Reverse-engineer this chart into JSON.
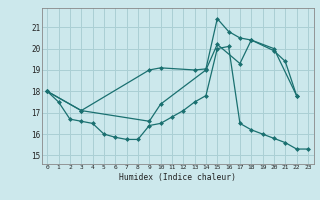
{
  "xlabel": "Humidex (Indice chaleur)",
  "bg_color": "#cce8ec",
  "grid_color": "#aacfd4",
  "line_color": "#1a7070",
  "xlim": [
    -0.5,
    23.5
  ],
  "ylim": [
    14.6,
    21.9
  ],
  "xticks": [
    0,
    1,
    2,
    3,
    4,
    5,
    6,
    7,
    8,
    9,
    10,
    11,
    12,
    13,
    14,
    15,
    16,
    17,
    18,
    19,
    20,
    21,
    22,
    23
  ],
  "yticks": [
    15,
    16,
    17,
    18,
    19,
    20,
    21
  ],
  "line1_x": [
    0,
    1,
    2,
    3,
    4,
    5,
    6,
    7,
    8,
    9,
    10,
    11,
    12,
    13,
    14,
    15,
    16,
    17,
    18,
    19,
    20,
    21,
    22,
    23
  ],
  "line1_y": [
    18.0,
    17.5,
    16.7,
    16.6,
    16.5,
    16.0,
    15.85,
    15.75,
    15.75,
    16.4,
    16.5,
    16.8,
    17.1,
    17.5,
    17.8,
    20.0,
    20.1,
    16.5,
    16.2,
    16.0,
    15.8,
    15.6,
    15.3,
    15.3
  ],
  "line2_x": [
    0,
    3,
    9,
    10,
    13,
    14,
    15,
    16,
    17,
    18,
    20,
    21,
    22
  ],
  "line2_y": [
    18.0,
    17.1,
    19.0,
    19.1,
    19.0,
    19.05,
    21.4,
    20.8,
    20.5,
    20.4,
    19.9,
    19.4,
    17.8
  ],
  "line3_x": [
    0,
    3,
    9,
    10,
    14,
    15,
    17,
    18,
    20,
    22
  ],
  "line3_y": [
    18.0,
    17.1,
    16.6,
    17.4,
    19.0,
    20.2,
    19.3,
    20.4,
    20.0,
    17.8
  ]
}
